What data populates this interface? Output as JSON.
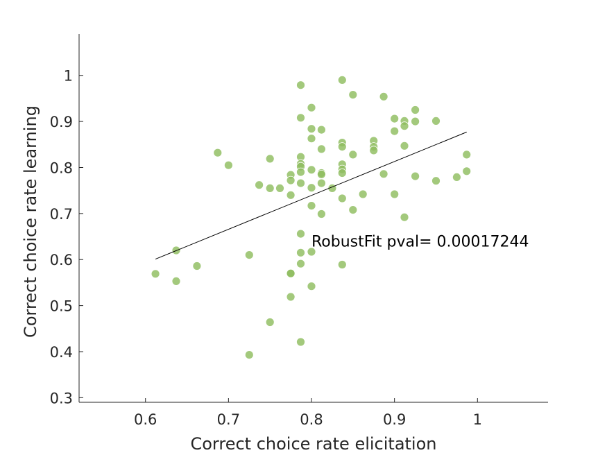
{
  "chart_data": {
    "type": "scatter",
    "xlabel": "Correct choice rate elicitation",
    "ylabel": "Correct choice rate learning",
    "xlim": [
      0.52,
      1.085
    ],
    "ylim": [
      0.29,
      1.09
    ],
    "xticks": [
      0.6,
      0.7,
      0.8,
      0.9,
      1
    ],
    "yticks": [
      0.3,
      0.4,
      0.5,
      0.6,
      0.7,
      0.8,
      0.9,
      1
    ],
    "grid": false,
    "marker_color": "#8fbd5f",
    "fit_line_color": "#000000",
    "annotation": "RobustFit pval= 0.00017244",
    "fit_line": {
      "x": [
        0.612,
        0.987
      ],
      "y": [
        0.601,
        0.877
      ]
    },
    "points": [
      {
        "x": 0.612,
        "y": 0.569
      },
      {
        "x": 0.637,
        "y": 0.62
      },
      {
        "x": 0.637,
        "y": 0.553
      },
      {
        "x": 0.662,
        "y": 0.586
      },
      {
        "x": 0.687,
        "y": 0.832
      },
      {
        "x": 0.7,
        "y": 0.805
      },
      {
        "x": 0.725,
        "y": 0.61
      },
      {
        "x": 0.725,
        "y": 0.393
      },
      {
        "x": 0.737,
        "y": 0.762
      },
      {
        "x": 0.75,
        "y": 0.819
      },
      {
        "x": 0.75,
        "y": 0.755
      },
      {
        "x": 0.75,
        "y": 0.464
      },
      {
        "x": 0.762,
        "y": 0.755
      },
      {
        "x": 0.775,
        "y": 0.784
      },
      {
        "x": 0.775,
        "y": 0.772
      },
      {
        "x": 0.775,
        "y": 0.74
      },
      {
        "x": 0.775,
        "y": 0.57
      },
      {
        "x": 0.775,
        "y": 0.57
      },
      {
        "x": 0.775,
        "y": 0.519
      },
      {
        "x": 0.787,
        "y": 0.979
      },
      {
        "x": 0.787,
        "y": 0.908
      },
      {
        "x": 0.787,
        "y": 0.823
      },
      {
        "x": 0.787,
        "y": 0.808
      },
      {
        "x": 0.787,
        "y": 0.802
      },
      {
        "x": 0.787,
        "y": 0.79
      },
      {
        "x": 0.787,
        "y": 0.766
      },
      {
        "x": 0.787,
        "y": 0.656
      },
      {
        "x": 0.787,
        "y": 0.615
      },
      {
        "x": 0.787,
        "y": 0.591
      },
      {
        "x": 0.787,
        "y": 0.421
      },
      {
        "x": 0.8,
        "y": 0.93
      },
      {
        "x": 0.8,
        "y": 0.884
      },
      {
        "x": 0.8,
        "y": 0.863
      },
      {
        "x": 0.8,
        "y": 0.795
      },
      {
        "x": 0.8,
        "y": 0.756
      },
      {
        "x": 0.8,
        "y": 0.717
      },
      {
        "x": 0.8,
        "y": 0.617
      },
      {
        "x": 0.8,
        "y": 0.542
      },
      {
        "x": 0.812,
        "y": 0.882
      },
      {
        "x": 0.812,
        "y": 0.84
      },
      {
        "x": 0.812,
        "y": 0.788
      },
      {
        "x": 0.812,
        "y": 0.785
      },
      {
        "x": 0.812,
        "y": 0.766
      },
      {
        "x": 0.812,
        "y": 0.699
      },
      {
        "x": 0.825,
        "y": 0.755
      },
      {
        "x": 0.837,
        "y": 0.99
      },
      {
        "x": 0.837,
        "y": 0.854
      },
      {
        "x": 0.837,
        "y": 0.845
      },
      {
        "x": 0.837,
        "y": 0.807
      },
      {
        "x": 0.837,
        "y": 0.796
      },
      {
        "x": 0.837,
        "y": 0.788
      },
      {
        "x": 0.837,
        "y": 0.733
      },
      {
        "x": 0.837,
        "y": 0.589
      },
      {
        "x": 0.85,
        "y": 0.958
      },
      {
        "x": 0.85,
        "y": 0.828
      },
      {
        "x": 0.85,
        "y": 0.708
      },
      {
        "x": 0.862,
        "y": 0.742
      },
      {
        "x": 0.875,
        "y": 0.858
      },
      {
        "x": 0.875,
        "y": 0.845
      },
      {
        "x": 0.875,
        "y": 0.837
      },
      {
        "x": 0.887,
        "y": 0.954
      },
      {
        "x": 0.887,
        "y": 0.786
      },
      {
        "x": 0.9,
        "y": 0.906
      },
      {
        "x": 0.9,
        "y": 0.879
      },
      {
        "x": 0.9,
        "y": 0.742
      },
      {
        "x": 0.912,
        "y": 0.901
      },
      {
        "x": 0.912,
        "y": 0.89
      },
      {
        "x": 0.912,
        "y": 0.847
      },
      {
        "x": 0.912,
        "y": 0.692
      },
      {
        "x": 0.925,
        "y": 0.925
      },
      {
        "x": 0.925,
        "y": 0.9
      },
      {
        "x": 0.925,
        "y": 0.781
      },
      {
        "x": 0.95,
        "y": 0.901
      },
      {
        "x": 0.95,
        "y": 0.771
      },
      {
        "x": 0.975,
        "y": 0.779
      },
      {
        "x": 0.987,
        "y": 0.828
      },
      {
        "x": 0.987,
        "y": 0.792
      }
    ]
  }
}
